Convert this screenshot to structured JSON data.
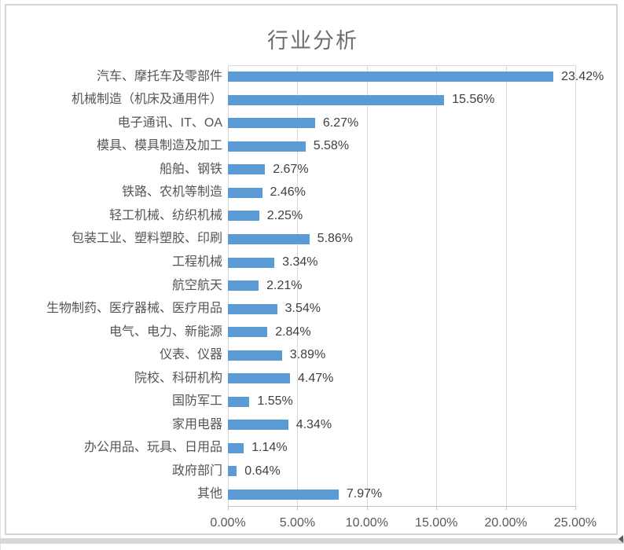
{
  "chart_data": {
    "type": "bar",
    "orientation": "horizontal",
    "title": "行业分析",
    "categories": [
      "汽车、摩托车及零部件",
      "机械制造（机床及通用件）",
      "电子通讯、IT、OA",
      "模具、模具制造及加工",
      "船舶、钢铁",
      "铁路、农机等制造",
      "轻工机械、纺织机械",
      "包装工业、塑料塑胶、印刷",
      "工程机械",
      "航空航天",
      "生物制药、医疗器械、医疗用品",
      "电气、电力、新能源",
      "仪表、仪器",
      "院校、科研机构",
      "国防军工",
      "家用电器",
      "办公用品、玩具、日用品",
      "政府部门",
      "其他"
    ],
    "values": [
      23.42,
      15.56,
      6.27,
      5.58,
      2.67,
      2.46,
      2.25,
      5.86,
      3.34,
      2.21,
      3.54,
      2.84,
      3.89,
      4.47,
      1.55,
      4.34,
      1.14,
      0.64,
      7.97
    ],
    "value_labels": [
      "23.42%",
      "15.56%",
      "6.27%",
      "5.58%",
      "2.67%",
      "2.46%",
      "2.25%",
      "5.86%",
      "3.34%",
      "2.21%",
      "3.54%",
      "2.84%",
      "3.89%",
      "4.47%",
      "1.55%",
      "4.34%",
      "1.14%",
      "0.64%",
      "7.97%"
    ],
    "xlabel": "",
    "ylabel": "",
    "xlim": [
      0,
      25
    ],
    "x_tick_labels": [
      "0.00%",
      "5.00%",
      "10.00%",
      "15.00%",
      "20.00%",
      "25.00%"
    ],
    "x_tick_values": [
      0,
      5,
      10,
      15,
      20,
      25
    ],
    "grid": "vertical-major",
    "legend": "none",
    "colors": {
      "bar": "#5b9bd5",
      "gridline": "#d9d9d9",
      "axis_line": "#c3c3c3",
      "title_text": "#6d6d6d",
      "category_text": "#555555",
      "value_text": "#3f3f3f",
      "tick_text": "#595959",
      "frame_border": "#d6d6d6"
    }
  }
}
